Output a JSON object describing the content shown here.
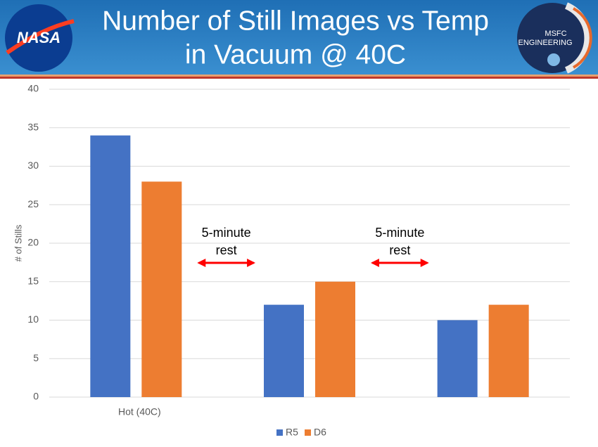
{
  "header": {
    "logo_left": "NASA",
    "logo_right": [
      "MSFC",
      "ENGINEERING"
    ]
  },
  "chart_data": {
    "type": "bar",
    "title": [
      "Number of Still Images vs Temp",
      "in Vacuum @ 40C"
    ],
    "y_label": "# of Stills",
    "categories": [
      "Hot (40C)",
      null,
      null
    ],
    "series": [
      {
        "name": "R5",
        "color": "#4472c4",
        "values": [
          34,
          12,
          10
        ]
      },
      {
        "name": "D6",
        "color": "#ed7d31",
        "values": [
          28,
          15,
          12
        ]
      }
    ],
    "ylim": [
      0,
      40
    ],
    "yticks": [
      0,
      5,
      10,
      15,
      20,
      25,
      30,
      35,
      40
    ],
    "grid": true,
    "legend": "bottom",
    "annotations": [
      {
        "lines": [
          "5-minute",
          "rest"
        ],
        "color": "#ff0000"
      },
      {
        "lines": [
          "5-minute",
          "rest"
        ],
        "color": "#ff0000"
      }
    ]
  }
}
